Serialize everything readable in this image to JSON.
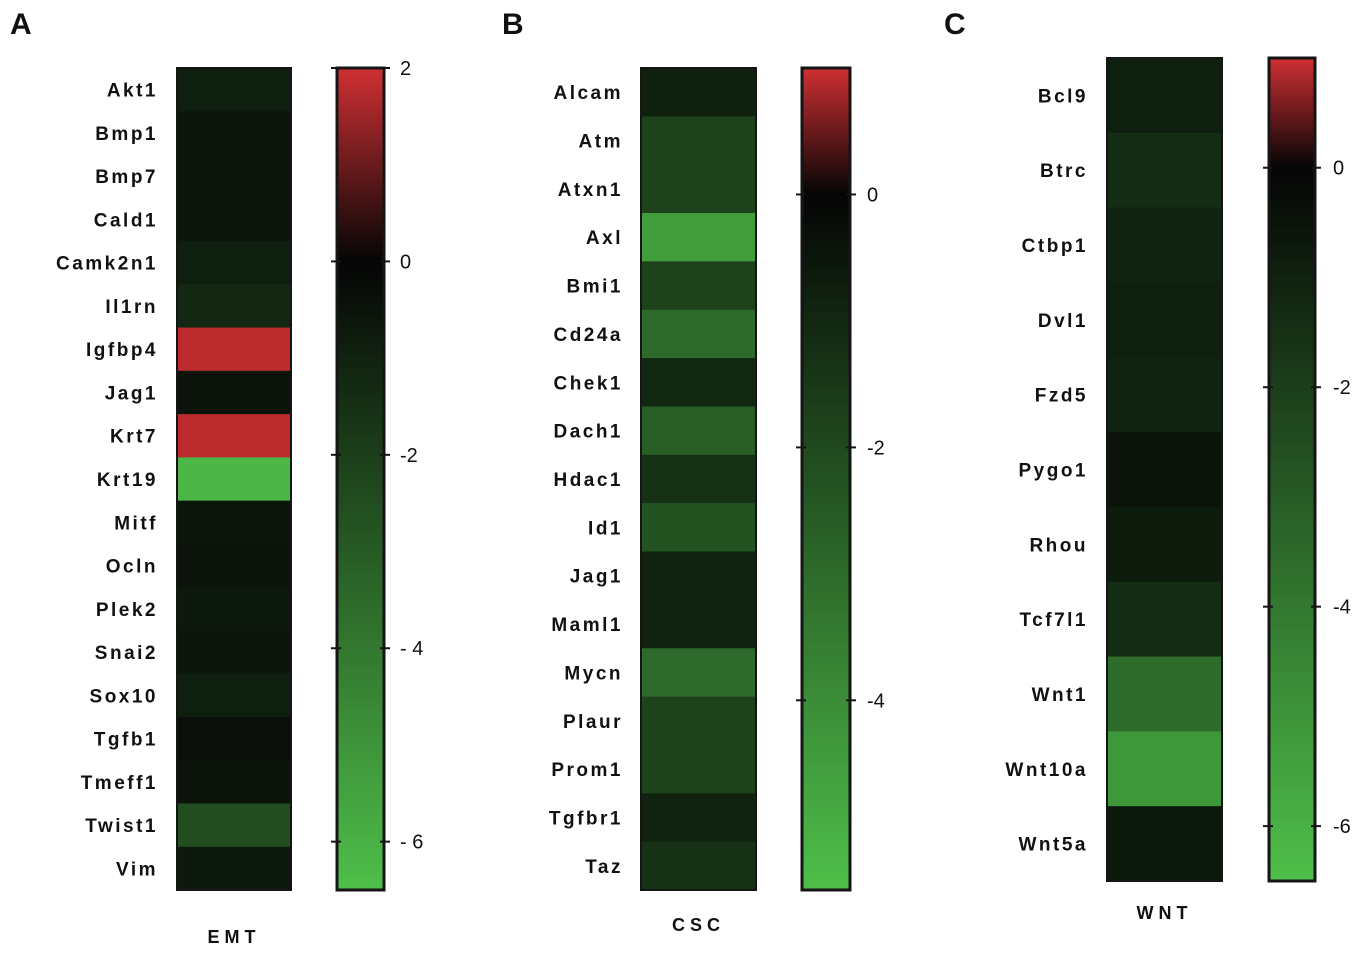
{
  "chart_data": [
    {
      "type": "heatmap",
      "panel": "A",
      "xlabel": "EMT",
      "rows": [
        "Akt1",
        "Bmp1",
        "Bmp7",
        "Cald1",
        "Camk2n1",
        "Il1rn",
        "Igfbp4",
        "Jag1",
        "Krt7",
        "Krt19",
        "Mitf",
        "Ocln",
        "Plek2",
        "Snai2",
        "Sox10",
        "Tgfb1",
        "Tmeff1",
        "Twist1",
        "Vim"
      ],
      "values": [
        -0.9,
        -0.6,
        -0.6,
        -0.6,
        -0.9,
        -1.2,
        1.8,
        -0.5,
        1.8,
        -6.2,
        -0.6,
        -0.5,
        -0.7,
        -0.6,
        -0.9,
        -0.4,
        -0.5,
        -2.5,
        -0.7
      ],
      "scale": {
        "min": -6.5,
        "max": 2.0,
        "ticks": [
          2,
          0,
          -2,
          -4,
          -6
        ],
        "tick_labels": [
          "2",
          "0",
          "-2",
          "- 4",
          "- 6"
        ]
      },
      "colors": {
        "low": "#4fbf4a",
        "mid": "#050505",
        "high": "#cf2f33"
      }
    },
    {
      "type": "heatmap",
      "panel": "B",
      "xlabel": "CSC",
      "rows": [
        "Alcam",
        "Atm",
        "Atxn1",
        "Axl",
        "Bmi1",
        "Cd24a",
        "Chek1",
        "Dach1",
        "Hdac1",
        "Id1",
        "Jag1",
        "Maml1",
        "Mycn",
        "Plaur",
        "Prom1",
        "Tgfbr1",
        "Taz"
      ],
      "values": [
        -0.8,
        -1.8,
        -1.8,
        -4.5,
        -1.8,
        -3.0,
        -1.0,
        -2.6,
        -1.3,
        -2.3,
        -0.9,
        -0.9,
        -3.0,
        -1.8,
        -1.8,
        -0.9,
        -1.3
      ],
      "scale": {
        "min": -5.5,
        "max": 1.0,
        "ticks": [
          0,
          -2,
          -4
        ],
        "tick_labels": [
          "0",
          "-2",
          "-4"
        ]
      },
      "colors": {
        "low": "#4fbf4a",
        "mid": "#050505",
        "high": "#cf2f33"
      }
    },
    {
      "type": "heatmap",
      "panel": "C",
      "xlabel": "WNT",
      "rows": [
        "Bcl9",
        "Btrc",
        "Ctbp1",
        "Dvl1",
        "Fzd5",
        "Pygo1",
        "Rhou",
        "Tcf7l1",
        "Wnt1",
        "Wnt10a",
        "Wnt5a"
      ],
      "values": [
        -0.9,
        -1.4,
        -1.0,
        -0.9,
        -1.0,
        -0.5,
        -0.8,
        -1.4,
        -3.6,
        -5.1,
        -0.7
      ],
      "scale": {
        "min": -6.5,
        "max": 1.0,
        "ticks": [
          0,
          -2,
          -4,
          -6
        ],
        "tick_labels": [
          "0",
          "-2",
          "-4",
          "-6"
        ]
      },
      "colors": {
        "low": "#4fbf4a",
        "mid": "#050505",
        "high": "#cf2f33"
      }
    }
  ]
}
